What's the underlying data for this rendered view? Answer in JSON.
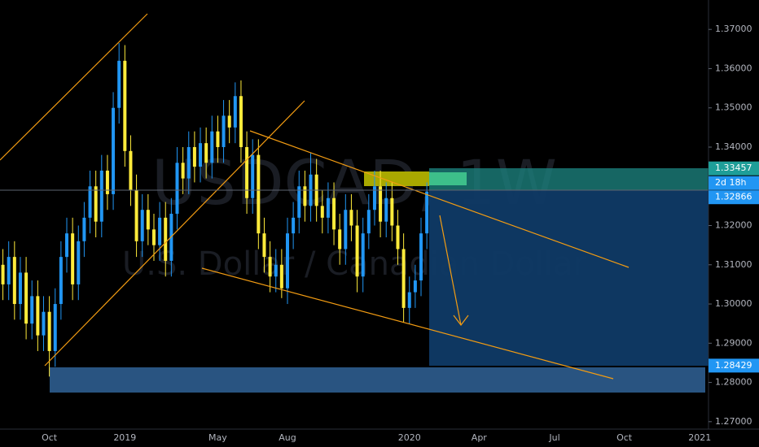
{
  "chart_data": {
    "type": "candlestick",
    "title": "USDCAD, 1W",
    "subtitle": "U.S. Dollar / Canadian Dollar",
    "up_color": "#2196f3",
    "down_color": "#ffeb3b",
    "categories": [
      null,
      null,
      null,
      null,
      null,
      null,
      null,
      null,
      "Oct",
      null,
      null,
      null,
      null,
      null,
      null,
      null,
      null,
      null,
      null,
      null,
      null,
      "2019",
      null,
      null,
      null,
      null,
      null,
      null,
      null,
      null,
      null,
      null,
      null,
      null,
      null,
      null,
      null,
      "May",
      null,
      null,
      null,
      null,
      null,
      null,
      null,
      null,
      null,
      null,
      null,
      "Aug",
      null,
      null,
      null,
      null,
      null,
      null,
      null,
      null,
      null,
      null,
      null,
      null,
      null,
      null,
      null,
      null,
      null,
      null,
      null,
      null,
      "2020",
      null,
      null,
      null,
      null,
      null,
      null,
      null,
      null,
      null,
      null,
      null,
      "Apr",
      null,
      null,
      null,
      null,
      null,
      null,
      null,
      null,
      null,
      null,
      null,
      null,
      "Jul",
      null,
      null,
      null,
      null,
      null,
      null,
      null,
      null,
      null,
      null,
      null,
      "Oct",
      null,
      null,
      null,
      null,
      null,
      null,
      null,
      null,
      null,
      null,
      null,
      null,
      "2021",
      null
    ],
    "ohlc": [
      [
        1.31,
        1.314,
        1.301,
        1.305
      ],
      [
        1.305,
        1.316,
        1.301,
        1.312
      ],
      [
        1.312,
        1.316,
        1.296,
        1.3
      ],
      [
        1.3,
        1.312,
        1.296,
        1.308
      ],
      [
        1.308,
        1.312,
        1.291,
        1.295
      ],
      [
        1.295,
        1.306,
        1.291,
        1.302
      ],
      [
        1.302,
        1.306,
        1.288,
        1.292
      ],
      [
        1.292,
        1.302,
        1.288,
        1.298
      ],
      [
        1.298,
        1.302,
        1.2815,
        1.288
      ],
      [
        1.288,
        1.304,
        1.284,
        1.3
      ],
      [
        1.3,
        1.316,
        1.296,
        1.312
      ],
      [
        1.312,
        1.322,
        1.308,
        1.318
      ],
      [
        1.318,
        1.322,
        1.301,
        1.305
      ],
      [
        1.305,
        1.32,
        1.301,
        1.316
      ],
      [
        1.316,
        1.326,
        1.312,
        1.322
      ],
      [
        1.322,
        1.334,
        1.318,
        1.33
      ],
      [
        1.33,
        1.334,
        1.317,
        1.321
      ],
      [
        1.321,
        1.338,
        1.317,
        1.334
      ],
      [
        1.334,
        1.338,
        1.324,
        1.328
      ],
      [
        1.328,
        1.354,
        1.324,
        1.35
      ],
      [
        1.35,
        1.3665,
        1.346,
        1.362
      ],
      [
        1.362,
        1.366,
        1.335,
        1.339
      ],
      [
        1.339,
        1.343,
        1.325,
        1.329
      ],
      [
        1.329,
        1.333,
        1.312,
        1.316
      ],
      [
        1.316,
        1.328,
        1.312,
        1.324
      ],
      [
        1.324,
        1.328,
        1.315,
        1.319
      ],
      [
        1.319,
        1.323,
        1.311,
        1.315
      ],
      [
        1.315,
        1.326,
        1.311,
        1.322
      ],
      [
        1.322,
        1.326,
        1.307,
        1.311
      ],
      [
        1.311,
        1.327,
        1.307,
        1.323
      ],
      [
        1.323,
        1.34,
        1.319,
        1.336
      ],
      [
        1.336,
        1.34,
        1.328,
        1.332
      ],
      [
        1.332,
        1.344,
        1.328,
        1.34
      ],
      [
        1.34,
        1.344,
        1.331,
        1.335
      ],
      [
        1.335,
        1.345,
        1.331,
        1.341
      ],
      [
        1.341,
        1.345,
        1.332,
        1.336
      ],
      [
        1.336,
        1.348,
        1.332,
        1.344
      ],
      [
        1.344,
        1.348,
        1.336,
        1.34
      ],
      [
        1.34,
        1.352,
        1.336,
        1.348
      ],
      [
        1.348,
        1.352,
        1.341,
        1.345
      ],
      [
        1.345,
        1.3565,
        1.341,
        1.353
      ],
      [
        1.353,
        1.357,
        1.336,
        1.34
      ],
      [
        1.34,
        1.344,
        1.323,
        1.327
      ],
      [
        1.327,
        1.342,
        1.323,
        1.338
      ],
      [
        1.338,
        1.342,
        1.314,
        1.318
      ],
      [
        1.318,
        1.322,
        1.308,
        1.312
      ],
      [
        1.312,
        1.316,
        1.303,
        1.307
      ],
      [
        1.307,
        1.314,
        1.303,
        1.31
      ],
      [
        1.31,
        1.314,
        1.3015,
        1.304
      ],
      [
        1.304,
        1.322,
        1.3,
        1.318
      ],
      [
        1.318,
        1.326,
        1.314,
        1.322
      ],
      [
        1.322,
        1.334,
        1.318,
        1.33
      ],
      [
        1.33,
        1.334,
        1.321,
        1.325
      ],
      [
        1.325,
        1.3385,
        1.321,
        1.333
      ],
      [
        1.333,
        1.337,
        1.321,
        1.325
      ],
      [
        1.325,
        1.329,
        1.318,
        1.322
      ],
      [
        1.322,
        1.331,
        1.318,
        1.327
      ],
      [
        1.327,
        1.331,
        1.315,
        1.319
      ],
      [
        1.319,
        1.323,
        1.31,
        1.314
      ],
      [
        1.314,
        1.328,
        1.31,
        1.324
      ],
      [
        1.324,
        1.328,
        1.316,
        1.32
      ],
      [
        1.32,
        1.324,
        1.303,
        1.307
      ],
      [
        1.307,
        1.322,
        1.303,
        1.318
      ],
      [
        1.318,
        1.328,
        1.314,
        1.324
      ],
      [
        1.324,
        1.334,
        1.32,
        1.33
      ],
      [
        1.33,
        1.334,
        1.317,
        1.321
      ],
      [
        1.321,
        1.331,
        1.317,
        1.327
      ],
      [
        1.327,
        1.331,
        1.316,
        1.32
      ],
      [
        1.32,
        1.324,
        1.31,
        1.314
      ],
      [
        1.314,
        1.318,
        1.2953,
        1.299
      ],
      [
        1.299,
        1.307,
        1.295,
        1.303
      ],
      [
        1.303,
        1.31,
        1.299,
        1.306
      ],
      [
        1.306,
        1.322,
        1.302,
        1.318
      ],
      [
        1.318,
        1.331,
        1.314,
        1.32866
      ],
      null,
      null,
      null,
      null,
      null,
      null,
      null,
      null,
      null,
      null,
      null,
      null,
      null,
      null,
      null,
      null,
      null,
      null,
      null,
      null,
      null,
      null,
      null,
      null,
      null,
      null,
      null,
      null,
      null,
      null,
      null,
      null,
      null,
      null,
      null,
      null,
      null,
      null,
      null,
      null,
      null,
      null,
      null,
      null,
      null,
      null,
      null,
      null
    ],
    "ylim": [
      1.2681,
      1.3775
    ],
    "yticks": [
      {
        "value": 1.27,
        "label": "1.27000"
      },
      {
        "value": 1.28,
        "label": "1.28000"
      },
      {
        "value": 1.29,
        "label": "1.29000"
      },
      {
        "value": 1.3,
        "label": "1.30000"
      },
      {
        "value": 1.31,
        "label": "1.31000"
      },
      {
        "value": 1.32,
        "label": "1.32000"
      },
      {
        "value": 1.33,
        "label": "1.33000"
      },
      {
        "value": 1.34,
        "label": "1.34000"
      },
      {
        "value": 1.35,
        "label": "1.35000"
      },
      {
        "value": 1.36,
        "label": "1.36000"
      },
      {
        "value": 1.37,
        "label": "1.37000"
      }
    ],
    "price_badges": [
      {
        "value": 1.33457,
        "label": "1.33457",
        "color": "#1e9e98"
      },
      {
        "value": 1.32866,
        "label": "1.32866",
        "color": "#2196f3"
      },
      {
        "value": 1.28429,
        "label": "1.28429",
        "color": "#2196f3"
      }
    ],
    "countdown": "2d 18h"
  }
}
